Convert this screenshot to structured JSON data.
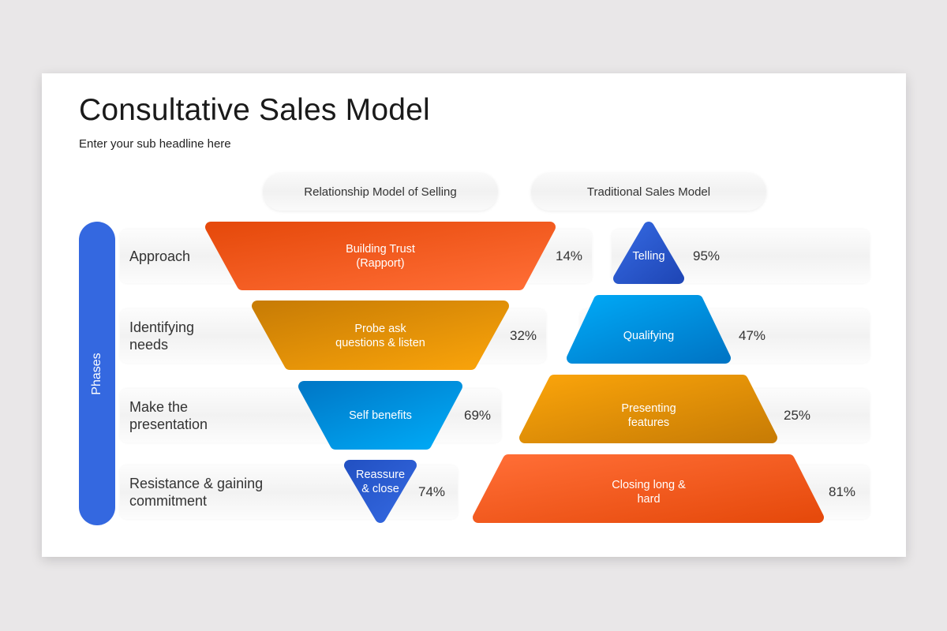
{
  "title": "Consultative Sales Model",
  "subtitle": "Enter your sub headline here",
  "columns": [
    "Relationship Model of Selling",
    "Traditional Sales Model"
  ],
  "phases_label": "Phases",
  "phases": [
    "Approach",
    "Identifying\nneeds",
    "Make the\npresentation",
    "Resistance & gaining\ncommitment"
  ],
  "relationship_model": [
    {
      "label": "Building Trust\n(Rapport)",
      "percent": "14%",
      "color_from": "#e64a0c",
      "color_to": "#ff6d35"
    },
    {
      "label": "Probe ask\nquestions & listen",
      "percent": "32%",
      "color_from": "#c97d05",
      "color_to": "#f9a30a"
    },
    {
      "label": "Self benefits",
      "percent": "69%",
      "color_from": "#0079c8",
      "color_to": "#00aaf6"
    },
    {
      "label": "Reassure\n& close",
      "percent": "74%",
      "color_from": "#2352c4",
      "color_to": "#3468e0"
    }
  ],
  "traditional_model": [
    {
      "label": "Telling",
      "percent": "95%",
      "color_from": "#3468e0",
      "color_to": "#2048b8"
    },
    {
      "label": "Qualifying",
      "percent": "47%",
      "color_from": "#00a8f5",
      "color_to": "#0076c6"
    },
    {
      "label": "Presenting\nfeatures",
      "percent": "25%",
      "color_from": "#f9a30a",
      "color_to": "#c97d05"
    },
    {
      "label": "Closing long &\nhard",
      "percent": "81%",
      "color_from": "#ff6d35",
      "color_to": "#e64a0c"
    }
  ]
}
